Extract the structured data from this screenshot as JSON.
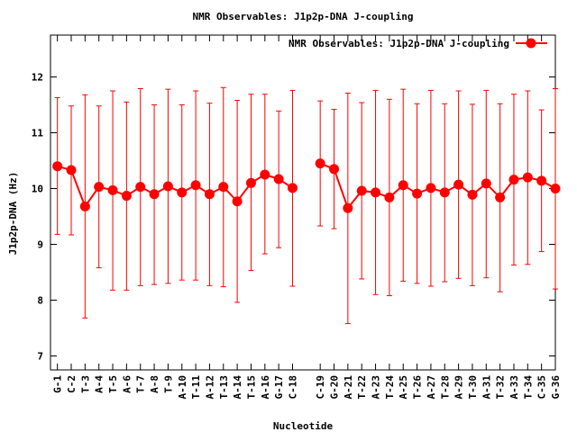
{
  "chart_data": {
    "type": "line",
    "title": "NMR Observables: J1p2p-DNA J-coupling",
    "xlabel": "Nucleotide",
    "ylabel": "J1p2p-DNA (Hz)",
    "ylim": [
      6.75,
      12.75
    ],
    "yticks": [
      7,
      8,
      9,
      10,
      11,
      12
    ],
    "xlim": [
      0.5,
      37
    ],
    "grid": false,
    "legend_position": "top-right",
    "series": [
      {
        "name": "NMR Observables: J1p2p-DNA J-coupling",
        "color": "#ff0000",
        "points": [
          {
            "x": 1,
            "label": "G-1",
            "y": 10.4,
            "err_low": 9.18,
            "err_high": 11.63
          },
          {
            "x": 2,
            "label": "C-2",
            "y": 10.33,
            "err_low": 9.17,
            "err_high": 11.48
          },
          {
            "x": 3,
            "label": "T-3",
            "y": 9.68,
            "err_low": 7.68,
            "err_high": 11.68
          },
          {
            "x": 4,
            "label": "A-4",
            "y": 10.03,
            "err_low": 8.58,
            "err_high": 11.48
          },
          {
            "x": 5,
            "label": "T-5",
            "y": 9.97,
            "err_low": 8.18,
            "err_high": 11.75
          },
          {
            "x": 6,
            "label": "A-6",
            "y": 9.87,
            "err_low": 8.18,
            "err_high": 11.55
          },
          {
            "x": 7,
            "label": "T-7",
            "y": 10.03,
            "err_low": 8.26,
            "err_high": 11.79
          },
          {
            "x": 8,
            "label": "A-8",
            "y": 9.9,
            "err_low": 8.28,
            "err_high": 11.5
          },
          {
            "x": 9,
            "label": "T-9",
            "y": 10.04,
            "err_low": 8.3,
            "err_high": 11.78
          },
          {
            "x": 10,
            "label": "A-10",
            "y": 9.93,
            "err_low": 8.36,
            "err_high": 11.5
          },
          {
            "x": 11,
            "label": "T-11",
            "y": 10.06,
            "err_low": 8.36,
            "err_high": 11.75
          },
          {
            "x": 12,
            "label": "A-12",
            "y": 9.9,
            "err_low": 8.26,
            "err_high": 11.53
          },
          {
            "x": 13,
            "label": "T-13",
            "y": 10.03,
            "err_low": 8.24,
            "err_high": 11.81
          },
          {
            "x": 14,
            "label": "A-14",
            "y": 9.77,
            "err_low": 7.96,
            "err_high": 11.58
          },
          {
            "x": 15,
            "label": "T-15",
            "y": 10.1,
            "err_low": 8.53,
            "err_high": 11.69
          },
          {
            "x": 16,
            "label": "A-16",
            "y": 10.25,
            "err_low": 8.83,
            "err_high": 11.69
          },
          {
            "x": 17,
            "label": "G-17",
            "y": 10.17,
            "err_low": 8.94,
            "err_high": 11.39
          },
          {
            "x": 18,
            "label": "C-18",
            "y": 10.01,
            "err_low": 8.25,
            "err_high": 11.76
          },
          {
            "x": 20,
            "label": "C-19",
            "y": 10.45,
            "err_low": 9.33,
            "err_high": 11.57
          },
          {
            "x": 21,
            "label": "G-20",
            "y": 10.35,
            "err_low": 9.28,
            "err_high": 11.42
          },
          {
            "x": 22,
            "label": "A-21",
            "y": 9.65,
            "err_low": 7.58,
            "err_high": 11.71
          },
          {
            "x": 23,
            "label": "T-22",
            "y": 9.96,
            "err_low": 8.38,
            "err_high": 11.54
          },
          {
            "x": 24,
            "label": "A-23",
            "y": 9.93,
            "err_low": 8.1,
            "err_high": 11.76
          },
          {
            "x": 25,
            "label": "T-24",
            "y": 9.84,
            "err_low": 8.08,
            "err_high": 11.6
          },
          {
            "x": 26,
            "label": "A-25",
            "y": 10.06,
            "err_low": 8.34,
            "err_high": 11.78
          },
          {
            "x": 27,
            "label": "T-26",
            "y": 9.91,
            "err_low": 8.3,
            "err_high": 11.52
          },
          {
            "x": 28,
            "label": "A-27",
            "y": 10.01,
            "err_low": 8.25,
            "err_high": 11.76
          },
          {
            "x": 29,
            "label": "T-28",
            "y": 9.93,
            "err_low": 8.33,
            "err_high": 11.52
          },
          {
            "x": 30,
            "label": "A-29",
            "y": 10.07,
            "err_low": 8.39,
            "err_high": 11.75
          },
          {
            "x": 31,
            "label": "T-30",
            "y": 9.89,
            "err_low": 8.26,
            "err_high": 11.51
          },
          {
            "x": 32,
            "label": "A-31",
            "y": 10.09,
            "err_low": 8.4,
            "err_high": 11.76
          },
          {
            "x": 33,
            "label": "T-32",
            "y": 9.84,
            "err_low": 8.15,
            "err_high": 11.52
          },
          {
            "x": 34,
            "label": "A-33",
            "y": 10.16,
            "err_low": 8.63,
            "err_high": 11.69
          },
          {
            "x": 35,
            "label": "T-34",
            "y": 10.2,
            "err_low": 8.64,
            "err_high": 11.75
          },
          {
            "x": 36,
            "label": "C-35",
            "y": 10.14,
            "err_low": 8.87,
            "err_high": 11.41
          },
          {
            "x": 37,
            "label": "G-36",
            "y": 10.0,
            "err_low": 8.2,
            "err_high": 11.79
          }
        ]
      }
    ]
  }
}
